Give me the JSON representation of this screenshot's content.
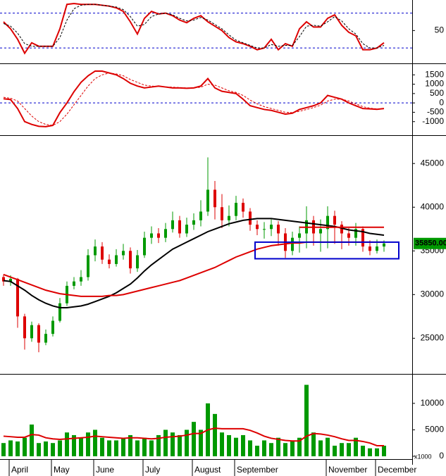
{
  "chart_data": [
    {
      "type": "line",
      "ylim": [
        14,
        85
      ],
      "yticks": [
        50
      ],
      "levels": [
        30,
        70
      ],
      "level_color": "#0000cc",
      "series": [
        {
          "color": "#dd0000",
          "values": [
            60,
            52,
            40,
            24,
            36,
            32,
            32,
            32,
            52,
            80,
            81,
            80,
            80,
            80,
            79,
            78,
            76,
            72,
            60,
            46,
            64,
            72,
            69,
            70,
            67,
            62,
            59,
            64,
            67,
            60,
            55,
            50,
            42,
            37,
            35,
            32,
            28,
            30,
            40,
            28,
            35,
            32,
            52,
            60,
            54,
            54,
            64,
            68,
            56,
            48,
            44,
            28,
            28,
            30,
            36
          ]
        },
        {
          "color": "#000000",
          "dashed": true,
          "values": [
            58,
            55,
            47,
            35,
            32,
            32,
            32,
            32,
            42,
            62,
            75,
            79,
            80,
            80,
            79,
            78,
            77,
            74,
            66,
            55,
            57,
            66,
            69,
            70,
            68,
            64,
            61,
            62,
            65,
            62,
            57,
            52,
            45,
            39,
            36,
            33,
            30,
            30,
            34,
            32,
            33,
            33,
            43,
            55,
            56,
            55,
            60,
            66,
            61,
            52,
            46,
            35,
            30,
            30,
            33
          ]
        }
      ]
    },
    {
      "type": "line",
      "ylim": [
        -1650,
        2000
      ],
      "yticks": [
        1500,
        1000,
        500,
        0,
        -500,
        -1000
      ],
      "levels": [
        0
      ],
      "level_color": "#0000cc",
      "series": [
        {
          "color": "#dd0000",
          "values": [
            220,
            180,
            -300,
            -1000,
            -1150,
            -1250,
            -1270,
            -1200,
            -520,
            0,
            600,
            1100,
            1450,
            1700,
            1700,
            1600,
            1500,
            1300,
            1050,
            900,
            800,
            850,
            900,
            850,
            800,
            800,
            780,
            800,
            900,
            1300,
            800,
            620,
            560,
            500,
            200,
            -150,
            -250,
            -350,
            -400,
            -500,
            -600,
            -550,
            -350,
            -250,
            -150,
            0,
            400,
            300,
            200,
            0,
            -150,
            -300,
            -320,
            -340,
            -300
          ]
        },
        {
          "color": "#dd0000",
          "dashed": true,
          "values": [
            300,
            250,
            100,
            -300,
            -700,
            -1000,
            -1150,
            -1200,
            -1000,
            -600,
            -100,
            400,
            900,
            1300,
            1500,
            1600,
            1550,
            1450,
            1250,
            1100,
            950,
            900,
            880,
            860,
            840,
            820,
            800,
            800,
            840,
            1000,
            950,
            800,
            650,
            560,
            400,
            150,
            -50,
            -200,
            -300,
            -400,
            -500,
            -520,
            -450,
            -350,
            -250,
            -120,
            100,
            200,
            200,
            100,
            -50,
            -200,
            -280,
            -320,
            -320
          ]
        }
      ]
    },
    {
      "type": "candlestick",
      "ylim": [
        21000,
        48000
      ],
      "yticks": [
        45000,
        40000,
        35000,
        30000,
        25000
      ],
      "up_color": "#009900",
      "down_color": "#dd0000",
      "open": [
        32000,
        31500,
        31800,
        27500,
        25000,
        26500,
        24500,
        25500,
        27000,
        29000,
        31000,
        31500,
        32000,
        34500,
        35500,
        34000,
        33500,
        34500,
        35000,
        33000,
        34500,
        36500,
        37000,
        36500,
        37500,
        38500,
        37000,
        38000,
        38500,
        39500,
        42000,
        40000,
        38500,
        39000,
        40500,
        39500,
        38000,
        37500,
        37500,
        38000,
        37000,
        35000,
        36500,
        37000,
        38500,
        37000,
        37500,
        39000,
        38000,
        37000,
        36500,
        37500,
        35500,
        35000,
        35500
      ],
      "high": [
        32300,
        32200,
        31900,
        27800,
        26900,
        26700,
        26000,
        27500,
        29600,
        31500,
        32000,
        32800,
        35200,
        36300,
        36000,
        34600,
        35200,
        35800,
        35400,
        35100,
        37200,
        37800,
        37600,
        38200,
        39500,
        39000,
        38800,
        39300,
        40800,
        45700,
        43000,
        41500,
        40200,
        41300,
        41000,
        39900,
        38500,
        38300,
        38600,
        38400,
        37600,
        37200,
        37800,
        40100,
        39000,
        38600,
        40100,
        39600,
        38400,
        37600,
        38200,
        37800,
        36200,
        36300,
        36200
      ],
      "low": [
        31000,
        31000,
        26200,
        23700,
        24600,
        23400,
        24200,
        25200,
        26800,
        28700,
        30600,
        31000,
        31600,
        33800,
        33500,
        33000,
        33200,
        34000,
        32400,
        32600,
        34200,
        35800,
        35900,
        36000,
        37100,
        36500,
        36600,
        37400,
        37800,
        39000,
        38600,
        37600,
        37800,
        38500,
        38800,
        37300,
        36800,
        36400,
        36700,
        35600,
        34200,
        34500,
        34800,
        35300,
        35600,
        34900,
        35300,
        35800,
        35200,
        35600,
        35600,
        34900,
        34500,
        34700,
        34900
      ],
      "close": [
        31500,
        31800,
        27500,
        25000,
        26500,
        24500,
        25500,
        27000,
        29000,
        31000,
        31500,
        32000,
        34500,
        35500,
        34000,
        33500,
        34500,
        35000,
        33000,
        34500,
        36500,
        37000,
        36500,
        37500,
        38500,
        37000,
        38000,
        38500,
        39500,
        42000,
        40000,
        38500,
        39000,
        40500,
        39500,
        38000,
        37500,
        37500,
        38000,
        37000,
        35000,
        36500,
        37000,
        38500,
        37000,
        37500,
        39000,
        38000,
        37000,
        36500,
        37500,
        35500,
        35000,
        35500,
        35850
      ],
      "series": [
        {
          "color": "#000000",
          "values": [
            31600,
            31500,
            31000,
            30500,
            29900,
            29400,
            29000,
            28700,
            28500,
            28500,
            28600,
            28700,
            28900,
            29200,
            29500,
            29800,
            30200,
            30700,
            31200,
            31900,
            32700,
            33400,
            34000,
            34600,
            35200,
            35600,
            36000,
            36400,
            36800,
            37200,
            37500,
            37800,
            38100,
            38300,
            38500,
            38600,
            38700,
            38700,
            38700,
            38600,
            38500,
            38400,
            38300,
            38200,
            38100,
            38000,
            37900,
            37800,
            37600,
            37400,
            37300,
            37200,
            37000,
            36900,
            36800
          ]
        },
        {
          "color": "#dd0000",
          "values": [
            32300,
            32000,
            31700,
            31400,
            31100,
            30800,
            30500,
            30300,
            30100,
            30000,
            29900,
            29800,
            29800,
            29800,
            29800,
            29900,
            29900,
            30000,
            30200,
            30400,
            30600,
            30800,
            31000,
            31200,
            31400,
            31600,
            31900,
            32200,
            32500,
            32800,
            33100,
            33500,
            33900,
            34300,
            34600,
            34900,
            35200,
            35400,
            35600,
            35700,
            35800,
            35900,
            35900,
            36000,
            36000,
            36000,
            36000,
            36000,
            36000,
            36000,
            36000,
            36000,
            36000,
            36000,
            36000
          ]
        },
        {
          "color": "#dd0000",
          "values": [
            null,
            null,
            null,
            null,
            null,
            null,
            null,
            null,
            null,
            null,
            null,
            null,
            null,
            null,
            null,
            null,
            null,
            null,
            null,
            null,
            null,
            null,
            null,
            null,
            null,
            null,
            null,
            null,
            null,
            null,
            null,
            null,
            null,
            null,
            null,
            null,
            null,
            null,
            null,
            null,
            null,
            null,
            37700,
            37700,
            37700,
            37700,
            37700,
            37700,
            37700,
            37700,
            37700,
            37700,
            37700,
            37700,
            37700
          ]
        }
      ],
      "box": {
        "ylim": [
          34100,
          36000
        ],
        "color": "#0000cc"
      },
      "last_value_label": "35850.00"
    },
    {
      "type": "bar",
      "color": "#009900",
      "categories": [
        null,
        "April",
        null,
        null,
        null,
        null,
        null,
        "May",
        null,
        null,
        null,
        null,
        null,
        "June",
        null,
        null,
        null,
        null,
        null,
        null,
        "July",
        null,
        null,
        null,
        null,
        null,
        null,
        "August",
        null,
        null,
        null,
        null,
        null,
        "September",
        null,
        null,
        null,
        null,
        null,
        null,
        null,
        null,
        null,
        null,
        null,
        null,
        "November",
        null,
        null,
        null,
        null,
        null,
        null,
        "December",
        null
      ],
      "values": [
        2500,
        3000,
        2800,
        3500,
        6000,
        2500,
        2800,
        2500,
        3000,
        4500,
        4000,
        3500,
        4500,
        5000,
        3500,
        3000,
        3000,
        3500,
        4000,
        3000,
        3500,
        3000,
        4000,
        5000,
        4500,
        4000,
        5000,
        6500,
        5000,
        10000,
        8000,
        4500,
        4000,
        3500,
        4000,
        3000,
        2000,
        3000,
        2500,
        3500,
        2500,
        3000,
        3500,
        13500,
        4500,
        3000,
        3500,
        2000,
        2500,
        2500,
        3500,
        2000,
        1500,
        1500,
        2000
      ],
      "ylim": [
        0,
        15300
      ],
      "yticks": [
        0,
        5000,
        10000
      ],
      "unit_label": "x1000",
      "series": [
        {
          "color": "#dd0000",
          "values": [
            3800,
            3700,
            3600,
            3600,
            4100,
            4000,
            3500,
            3300,
            3200,
            3300,
            3400,
            3500,
            3600,
            3800,
            3700,
            3600,
            3500,
            3400,
            3500,
            3500,
            3400,
            3300,
            3400,
            3600,
            3700,
            3800,
            4000,
            4300,
            4300,
            5000,
            5300,
            5200,
            5200,
            5200,
            5200,
            4900,
            4400,
            3800,
            3400,
            3200,
            3000,
            2900,
            2900,
            3800,
            4300,
            4200,
            4000,
            3700,
            3300,
            3000,
            3000,
            2800,
            2500,
            2000,
            2000
          ]
        }
      ]
    }
  ]
}
